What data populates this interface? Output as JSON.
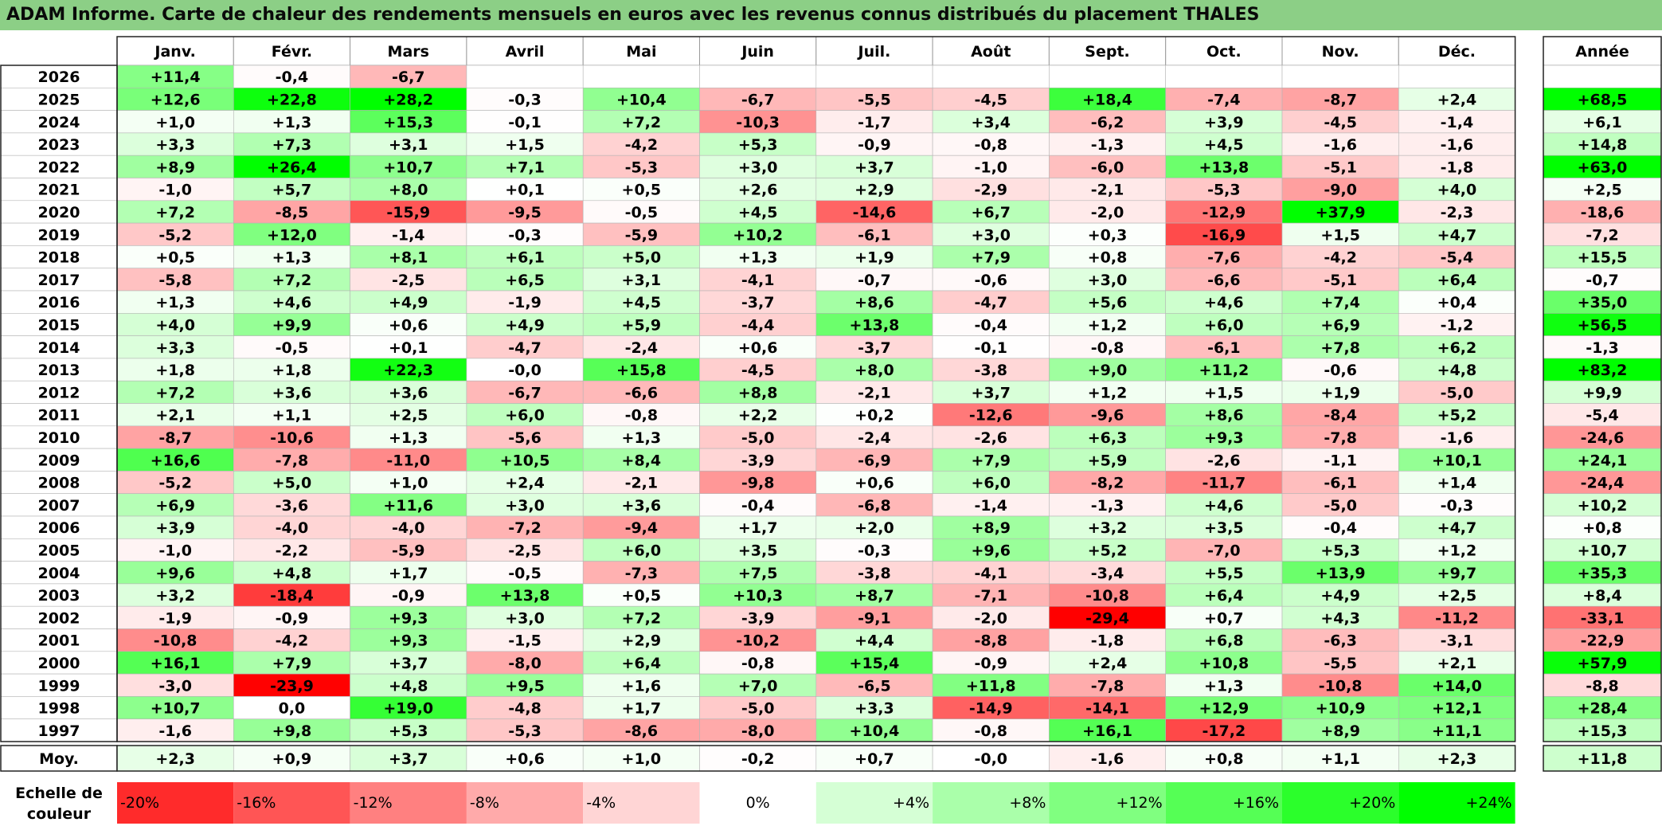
{
  "title": "ADAM Informe. Carte de chaleur des rendements mensuels en euros avec les revenus connus distribués du placement THALES",
  "chart_data": {
    "type": "heatmap",
    "columns": [
      "Janv.",
      "Févr.",
      "Mars",
      "Avril",
      "Mai",
      "Juin",
      "Juil.",
      "Août",
      "Sept.",
      "Oct.",
      "Nov.",
      "Déc."
    ],
    "annual_header": "Année",
    "rows": [
      {
        "label": "2026",
        "values": [
          "+11,4",
          "-0,4",
          "-6,7",
          "",
          "",
          "",
          "",
          "",
          "",
          "",
          "",
          ""
        ],
        "annual": ""
      },
      {
        "label": "2025",
        "values": [
          "+12,6",
          "+22,8",
          "+28,2",
          "-0,3",
          "+10,4",
          "-6,7",
          "-5,5",
          "-4,5",
          "+18,4",
          "-7,4",
          "-8,7",
          "+2,4"
        ],
        "annual": "+68,5"
      },
      {
        "label": "2024",
        "values": [
          "+1,0",
          "+1,3",
          "+15,3",
          "-0,1",
          "+7,2",
          "-10,3",
          "-1,7",
          "+3,4",
          "-6,2",
          "+3,9",
          "-4,5",
          "-1,4"
        ],
        "annual": "+6,1"
      },
      {
        "label": "2023",
        "values": [
          "+3,3",
          "+7,3",
          "+3,1",
          "+1,5",
          "-4,2",
          "+5,3",
          "-0,9",
          "-0,8",
          "-1,3",
          "+4,5",
          "-1,6",
          "-1,6"
        ],
        "annual": "+14,8"
      },
      {
        "label": "2022",
        "values": [
          "+8,9",
          "+26,4",
          "+10,7",
          "+7,1",
          "-5,3",
          "+3,0",
          "+3,7",
          "-1,0",
          "-6,0",
          "+13,8",
          "-5,1",
          "-1,8"
        ],
        "annual": "+63,0"
      },
      {
        "label": "2021",
        "values": [
          "-1,0",
          "+5,7",
          "+8,0",
          "+0,1",
          "+0,5",
          "+2,6",
          "+2,9",
          "-2,9",
          "-2,1",
          "-5,3",
          "-9,0",
          "+4,0"
        ],
        "annual": "+2,5"
      },
      {
        "label": "2020",
        "values": [
          "+7,2",
          "-8,5",
          "-15,9",
          "-9,5",
          "-0,5",
          "+4,5",
          "-14,6",
          "+6,7",
          "-2,0",
          "-12,9",
          "+37,9",
          "-2,3"
        ],
        "annual": "-18,6"
      },
      {
        "label": "2019",
        "values": [
          "-5,2",
          "+12,0",
          "-1,4",
          "-0,3",
          "-5,9",
          "+10,2",
          "-6,1",
          "+3,0",
          "+0,3",
          "-16,9",
          "+1,5",
          "+4,7"
        ],
        "annual": "-7,2"
      },
      {
        "label": "2018",
        "values": [
          "+0,5",
          "+1,3",
          "+8,1",
          "+6,1",
          "+5,0",
          "+1,3",
          "+1,9",
          "+7,9",
          "+0,8",
          "-7,6",
          "-4,2",
          "-5,4"
        ],
        "annual": "+15,5"
      },
      {
        "label": "2017",
        "values": [
          "-5,8",
          "+7,2",
          "-2,5",
          "+6,5",
          "+3,1",
          "-4,1",
          "-0,7",
          "-0,6",
          "+3,0",
          "-6,6",
          "-5,1",
          "+6,4"
        ],
        "annual": "-0,7"
      },
      {
        "label": "2016",
        "values": [
          "+1,3",
          "+4,6",
          "+4,9",
          "-1,9",
          "+4,5",
          "-3,7",
          "+8,6",
          "-4,7",
          "+5,6",
          "+4,6",
          "+7,4",
          "+0,4"
        ],
        "annual": "+35,0"
      },
      {
        "label": "2015",
        "values": [
          "+4,0",
          "+9,9",
          "+0,6",
          "+4,9",
          "+5,9",
          "-4,4",
          "+13,8",
          "-0,4",
          "+1,2",
          "+6,0",
          "+6,9",
          "-1,2"
        ],
        "annual": "+56,5"
      },
      {
        "label": "2014",
        "values": [
          "+3,3",
          "-0,5",
          "+0,1",
          "-4,7",
          "-2,4",
          "+0,6",
          "-3,7",
          "-0,1",
          "-0,8",
          "-6,1",
          "+7,8",
          "+6,2"
        ],
        "annual": "-1,3"
      },
      {
        "label": "2013",
        "values": [
          "+1,8",
          "+1,8",
          "+22,3",
          "-0,0",
          "+15,8",
          "-4,5",
          "+8,0",
          "-3,8",
          "+9,0",
          "+11,2",
          "-0,6",
          "+4,8"
        ],
        "annual": "+83,2"
      },
      {
        "label": "2012",
        "values": [
          "+7,2",
          "+3,6",
          "+3,6",
          "-6,7",
          "-6,6",
          "+8,8",
          "-2,1",
          "+3,7",
          "+1,2",
          "+1,5",
          "+1,9",
          "-5,0"
        ],
        "annual": "+9,9"
      },
      {
        "label": "2011",
        "values": [
          "+2,1",
          "+1,1",
          "+2,5",
          "+6,0",
          "-0,8",
          "+2,2",
          "+0,2",
          "-12,6",
          "-9,6",
          "+8,6",
          "-8,4",
          "+5,2"
        ],
        "annual": "-5,4"
      },
      {
        "label": "2010",
        "values": [
          "-8,7",
          "-10,6",
          "+1,3",
          "-5,6",
          "+1,3",
          "-5,0",
          "-2,4",
          "-2,6",
          "+6,3",
          "+9,3",
          "-7,8",
          "-1,6"
        ],
        "annual": "-24,6"
      },
      {
        "label": "2009",
        "values": [
          "+16,6",
          "-7,8",
          "-11,0",
          "+10,5",
          "+8,4",
          "-3,9",
          "-6,9",
          "+7,9",
          "+5,9",
          "-2,6",
          "-1,1",
          "+10,1"
        ],
        "annual": "+24,1"
      },
      {
        "label": "2008",
        "values": [
          "-5,2",
          "+5,0",
          "+1,0",
          "+2,4",
          "-2,1",
          "-9,8",
          "+0,6",
          "+6,0",
          "-8,2",
          "-11,7",
          "-6,1",
          "+1,4"
        ],
        "annual": "-24,4"
      },
      {
        "label": "2007",
        "values": [
          "+6,9",
          "-3,6",
          "+11,6",
          "+3,0",
          "+3,6",
          "-0,4",
          "-6,8",
          "-1,4",
          "-1,3",
          "+4,6",
          "-5,0",
          "-0,3"
        ],
        "annual": "+10,2"
      },
      {
        "label": "2006",
        "values": [
          "+3,9",
          "-4,0",
          "-4,0",
          "-7,2",
          "-9,4",
          "+1,7",
          "+2,0",
          "+8,9",
          "+3,2",
          "+3,5",
          "-0,4",
          "+4,7"
        ],
        "annual": "+0,8"
      },
      {
        "label": "2005",
        "values": [
          "-1,0",
          "-2,2",
          "-5,9",
          "-2,5",
          "+6,0",
          "+3,5",
          "-0,3",
          "+9,6",
          "+5,2",
          "-7,0",
          "+5,3",
          "+1,2"
        ],
        "annual": "+10,7"
      },
      {
        "label": "2004",
        "values": [
          "+9,6",
          "+4,8",
          "+1,7",
          "-0,5",
          "-7,3",
          "+7,5",
          "-3,8",
          "-4,1",
          "-3,4",
          "+5,5",
          "+13,9",
          "+9,7"
        ],
        "annual": "+35,3"
      },
      {
        "label": "2003",
        "values": [
          "+3,2",
          "-18,4",
          "-0,9",
          "+13,8",
          "+0,5",
          "+10,3",
          "+8,7",
          "-7,1",
          "-10,8",
          "+6,4",
          "+4,9",
          "+2,5"
        ],
        "annual": "+8,4"
      },
      {
        "label": "2002",
        "values": [
          "-1,9",
          "-0,9",
          "+9,3",
          "+3,0",
          "+7,2",
          "-3,9",
          "-9,1",
          "-2,0",
          "-29,4",
          "+0,7",
          "+4,3",
          "-11,2"
        ],
        "annual": "-33,1"
      },
      {
        "label": "2001",
        "values": [
          "-10,8",
          "-4,2",
          "+9,3",
          "-1,5",
          "+2,9",
          "-10,2",
          "+4,4",
          "-8,8",
          "-1,8",
          "+6,8",
          "-6,3",
          "-3,1"
        ],
        "annual": "-22,9"
      },
      {
        "label": "2000",
        "values": [
          "+16,1",
          "+7,9",
          "+3,7",
          "-8,0",
          "+6,4",
          "-0,8",
          "+15,4",
          "-0,9",
          "+2,4",
          "+10,8",
          "-5,5",
          "+2,1"
        ],
        "annual": "+57,9"
      },
      {
        "label": "1999",
        "values": [
          "-3,0",
          "-23,9",
          "+4,8",
          "+9,5",
          "+1,6",
          "+7,0",
          "-6,5",
          "+11,8",
          "-7,8",
          "+1,3",
          "-10,8",
          "+14,0"
        ],
        "annual": "-8,8"
      },
      {
        "label": "1998",
        "values": [
          "+10,7",
          "0,0",
          "+19,0",
          "-4,8",
          "+1,7",
          "-5,0",
          "+3,3",
          "-14,9",
          "-14,1",
          "+12,9",
          "+10,9",
          "+12,1"
        ],
        "annual": "+28,4"
      },
      {
        "label": "1997",
        "values": [
          "-1,6",
          "+9,8",
          "+5,3",
          "-5,3",
          "-8,6",
          "-8,0",
          "+10,4",
          "-0,8",
          "+16,1",
          "-17,2",
          "+8,9",
          "+11,1"
        ],
        "annual": "+15,3"
      }
    ],
    "average_row": {
      "label": "Moy.",
      "values": [
        "+2,3",
        "+0,9",
        "+3,7",
        "+0,6",
        "+1,0",
        "-0,2",
        "+0,7",
        "-0,0",
        "-1,6",
        "+0,8",
        "+1,1",
        "+2,3"
      ],
      "annual": "+11,8"
    },
    "color_scale": {
      "label_line1": "Echelle de",
      "label_line2": "couleur",
      "steps": [
        "-20%",
        "-16%",
        "-12%",
        "-8%",
        "-4%",
        "0%",
        "+4%",
        "+8%",
        "+12%",
        "+16%",
        "+20%",
        "+24%"
      ],
      "values": [
        -20,
        -16,
        -12,
        -8,
        -4,
        0,
        4,
        8,
        12,
        16,
        20,
        24
      ]
    },
    "colors": {
      "negative": "#ff0000",
      "neutral": "#ffffff",
      "positive": "#00ff00",
      "title_bar": "#8ccf86"
    }
  }
}
